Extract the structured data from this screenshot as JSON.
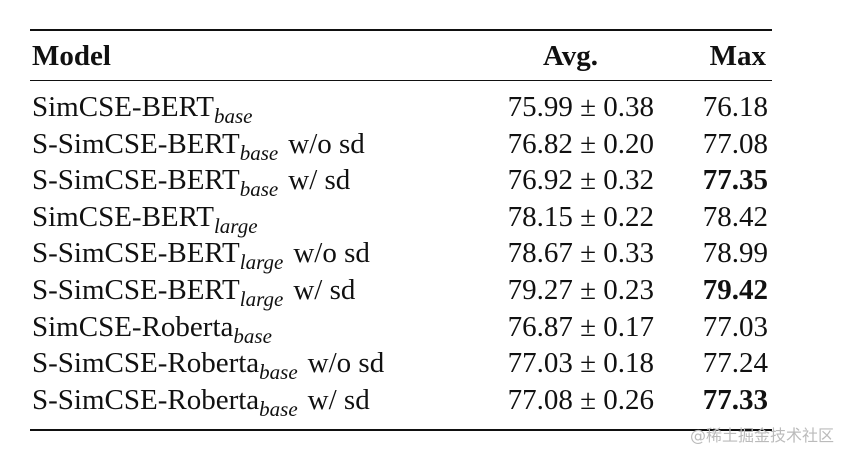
{
  "table": {
    "header": [
      "Model",
      "Avg.",
      "Max"
    ],
    "rows": [
      {
        "model": "SimCSE-BERT",
        "sub": "base",
        "avg": "75.99 ± 0.38",
        "max": "76.18"
      },
      {
        "model": "S-SimCSE-BERT",
        "sub": "base",
        "suffix": "w/o sd",
        "avg": "76.82 ± 0.20",
        "max": "77.08"
      },
      {
        "model": "S-SimCSE-BERT",
        "sub": "base",
        "suffix": "w/ sd",
        "avg": "76.92 ± 0.32",
        "max": "77.35",
        "bold": true
      },
      {
        "model": "SimCSE-BERT",
        "sub": "large",
        "avg": "78.15 ± 0.22",
        "max": "78.42"
      },
      {
        "model": "S-SimCSE-BERT",
        "sub": "large",
        "suffix": "w/o sd",
        "avg": "78.67 ± 0.33",
        "max": "78.99"
      },
      {
        "model": "S-SimCSE-BERT",
        "sub": "large",
        "suffix": "w/ sd",
        "avg": "79.27 ± 0.23",
        "max": "79.42",
        "bold": true
      },
      {
        "model": "SimCSE-Roberta",
        "sub": "base",
        "avg": "76.87 ± 0.17",
        "max": "77.03"
      },
      {
        "model": "S-SimCSE-Roberta",
        "sub": "base",
        "suffix": "w/o sd",
        "avg": "77.03 ± 0.18",
        "max": "77.24"
      },
      {
        "model": "S-SimCSE-Roberta",
        "sub": "base",
        "suffix": "w/ sd",
        "avg": "77.08 ± 0.26",
        "max": "77.33",
        "bold": true
      }
    ]
  },
  "watermark": "@稀土掘金技术社区"
}
